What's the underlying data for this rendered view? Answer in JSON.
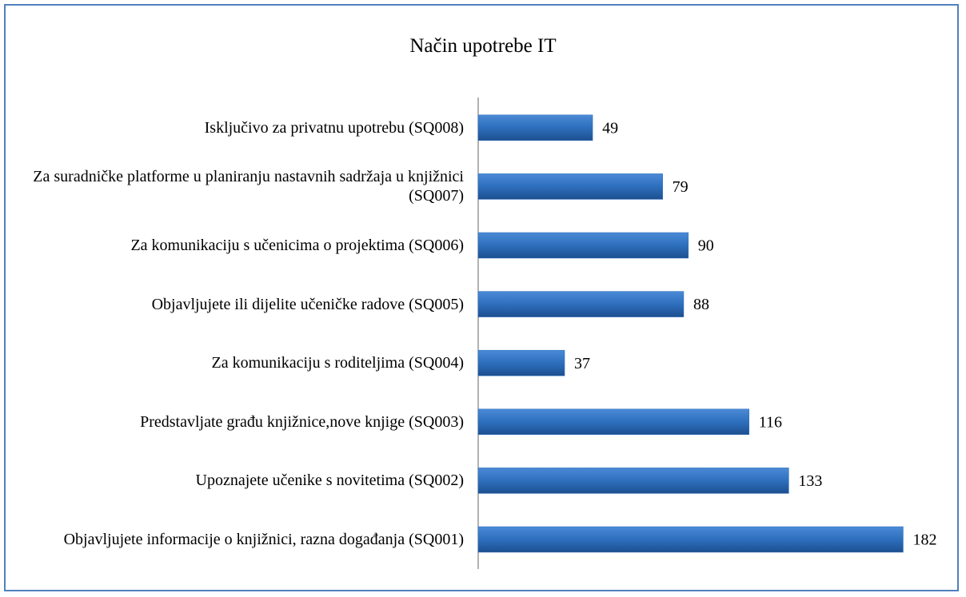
{
  "chart_data": {
    "type": "bar",
    "orientation": "horizontal",
    "title": "Način upotrebe IT",
    "categories": [
      "Isključivo za privatnu upotrebu (SQ008)",
      "Za suradničke platforme u planiranju nastavnih sadržaja u knjižnici (SQ007)",
      "Za komunikaciju s učenicima o projektima (SQ006)",
      "Objavljujete ili dijelite učeničke radove (SQ005)",
      "Za komunikaciju s roditeljima (SQ004)",
      "Predstavljate građu knjižnice,nove knjige (SQ003)",
      "Upoznajete učenike s novitetima (SQ002)",
      "Objavljujete informacije o knjižnici, razna događanja (SQ001)"
    ],
    "values": [
      49,
      79,
      90,
      88,
      37,
      116,
      133,
      182
    ],
    "color": "#2e6fbd"
  }
}
